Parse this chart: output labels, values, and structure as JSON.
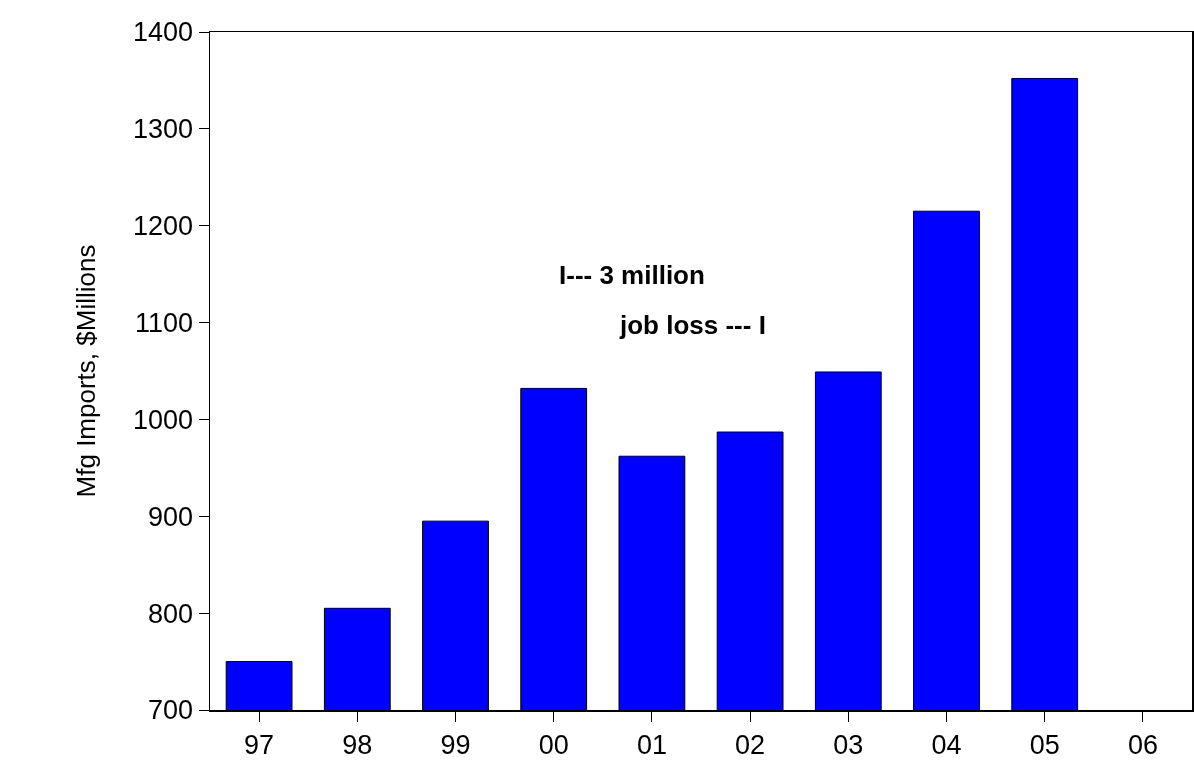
{
  "chart_data": {
    "type": "bar",
    "ylabel": "Mfg Imports, $Millions",
    "categories": [
      "97",
      "98",
      "99",
      "00",
      "01",
      "02",
      "03",
      "04",
      "05",
      "06"
    ],
    "values": [
      750,
      805,
      895,
      1032,
      962,
      987,
      1049,
      1215,
      1352,
      null
    ],
    "color": "#0000ff",
    "ylim": [
      700,
      1400
    ],
    "yticks": [
      700,
      800,
      900,
      1000,
      1100,
      1200,
      1300,
      1400
    ],
    "grid": false,
    "annotations": [
      "I--- 3 million",
      "job loss --- I"
    ]
  }
}
